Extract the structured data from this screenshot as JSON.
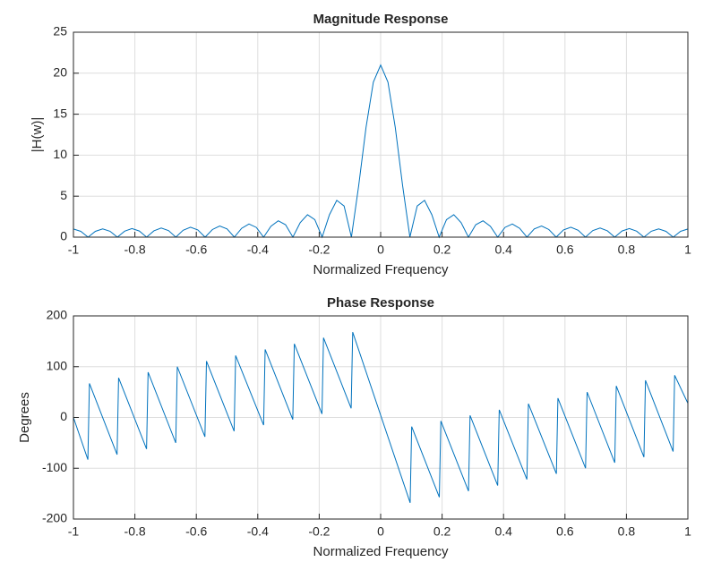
{
  "chart_data": [
    {
      "type": "line",
      "title": "Magnitude Response",
      "xlabel": "Normalized Frequency",
      "ylabel": "|H(w)|",
      "color": "#0072bd",
      "grid": true,
      "xlim": [
        -1,
        1
      ],
      "xticks": [
        -1,
        -0.8,
        -0.6,
        -0.4,
        -0.2,
        0,
        0.2,
        0.4,
        0.6,
        0.8,
        1
      ],
      "ylim": [
        0,
        25
      ],
      "yticks": [
        0,
        5,
        10,
        15,
        20,
        25
      ],
      "x": [
        -1,
        -0.9762,
        -0.9524,
        -0.9286,
        -0.9048,
        -0.881,
        -0.8571,
        -0.8333,
        -0.8095,
        -0.7857,
        -0.7619,
        -0.7381,
        -0.7143,
        -0.6905,
        -0.6667,
        -0.6429,
        -0.619,
        -0.5952,
        -0.5714,
        -0.5476,
        -0.5238,
        -0.5,
        -0.4762,
        -0.4524,
        -0.4286,
        -0.4048,
        -0.381,
        -0.3571,
        -0.3333,
        -0.3095,
        -0.2857,
        -0.2619,
        -0.2381,
        -0.2143,
        -0.1905,
        -0.1667,
        -0.1429,
        -0.119,
        -0.0952,
        -0.0714,
        -0.0476,
        -0.0238,
        0,
        0.0238,
        0.0476,
        0.0714,
        0.0952,
        0.119,
        0.1429,
        0.1667,
        0.1905,
        0.2143,
        0.2381,
        0.2619,
        0.2857,
        0.3095,
        0.3333,
        0.3571,
        0.381,
        0.4048,
        0.4286,
        0.4524,
        0.4762,
        0.5,
        0.5238,
        0.5476,
        0.5714,
        0.5952,
        0.619,
        0.6429,
        0.6667,
        0.6905,
        0.7143,
        0.7381,
        0.7619,
        0.7857,
        0.8095,
        0.8333,
        0.8571,
        0.881,
        0.9048,
        0.9286,
        0.9524,
        0.9762,
        1
      ],
      "values": [
        1.0,
        0.71,
        0,
        0.71,
        1.01,
        0.72,
        0,
        0.73,
        1.05,
        0.75,
        0,
        0.77,
        1.11,
        0.8,
        0,
        0.84,
        1.21,
        0.88,
        0,
        0.93,
        1.36,
        1.0,
        0,
        1.08,
        1.6,
        1.19,
        0,
        1.33,
        2.0,
        1.51,
        0,
        1.77,
        2.74,
        2.14,
        0,
        2.73,
        4.49,
        3.8,
        0,
        6.31,
        13.38,
        18.91,
        21,
        18.91,
        13.38,
        6.31,
        0,
        3.8,
        4.49,
        2.73,
        0,
        2.14,
        2.74,
        1.77,
        0,
        1.51,
        2.0,
        1.33,
        0,
        1.19,
        1.6,
        1.08,
        0,
        1.0,
        1.36,
        0.93,
        0,
        0.88,
        1.21,
        0.84,
        0,
        0.8,
        1.11,
        0.77,
        0,
        0.75,
        1.05,
        0.73,
        0,
        0.72,
        1.01,
        0.71,
        0,
        0.71,
        1.0
      ]
    },
    {
      "type": "line",
      "title": "Phase Response",
      "xlabel": "Normalized Frequency",
      "ylabel": "Degrees",
      "color": "#0072bd",
      "grid": true,
      "xlim": [
        -1,
        1
      ],
      "xticks": [
        -1,
        -0.8,
        -0.6,
        -0.4,
        -0.2,
        0,
        0.2,
        0.4,
        0.6,
        0.8,
        1
      ],
      "ylim": [
        -200,
        200
      ],
      "yticks": [
        -200,
        -100,
        0,
        100,
        200
      ],
      "x": [
        -1,
        -0.953,
        -0.948,
        -0.858,
        -0.853,
        -0.762,
        -0.757,
        -0.667,
        -0.662,
        -0.572,
        -0.567,
        -0.477,
        -0.472,
        -0.381,
        -0.376,
        -0.286,
        -0.281,
        -0.191,
        -0.186,
        -0.096,
        -0.091,
        0.096,
        0.101,
        0.191,
        0.196,
        0.286,
        0.291,
        0.381,
        0.386,
        0.476,
        0.481,
        0.572,
        0.577,
        0.667,
        0.672,
        0.762,
        0.767,
        0.857,
        0.862,
        0.952,
        0.957,
        1
      ],
      "values": [
        0,
        -83,
        67,
        -73,
        78,
        -62,
        89,
        -50,
        100,
        -38,
        111,
        -27,
        122,
        -15,
        134,
        -4,
        145,
        7,
        157,
        18,
        168,
        -168,
        -18,
        -157,
        -7,
        -145,
        4,
        -134,
        15,
        -122,
        27,
        -111,
        38,
        -100,
        50,
        -89,
        62,
        -78,
        73,
        -67,
        83,
        28
      ]
    }
  ]
}
